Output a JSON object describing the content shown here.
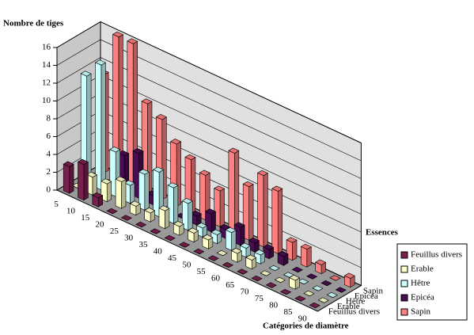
{
  "chart_data": {
    "type": "bar3d",
    "y_title": "Nombre de tiges",
    "x_title": "Catégories de diamètre",
    "z_title": "Essences",
    "categories": [
      "5",
      "10",
      "15",
      "20",
      "25",
      "30",
      "35",
      "40",
      "45",
      "50",
      "55",
      "60",
      "65",
      "70",
      "75",
      "80",
      "85",
      "90"
    ],
    "ylim": [
      0,
      16
    ],
    "yticks": [
      0,
      2,
      4,
      6,
      8,
      10,
      12,
      14,
      16
    ],
    "grid": true,
    "series": [
      {
        "name": "Feuillus divers",
        "color": "#7b1f4f",
        "values": [
          3,
          4,
          1,
          0,
          0,
          0,
          0,
          0,
          0,
          0,
          0,
          0,
          0,
          0,
          0,
          0,
          0,
          0
        ]
      },
      {
        "name": "Erable",
        "color": "#ffffcc",
        "values": [
          0,
          2,
          2,
          3,
          1,
          1,
          2,
          1,
          1,
          1,
          0,
          1,
          1,
          0,
          0,
          1,
          0,
          0
        ]
      },
      {
        "name": "Hêtre",
        "color": "#ccffff",
        "values": [
          12,
          14,
          5,
          2,
          4,
          5,
          4,
          3,
          1,
          1,
          2,
          1,
          1,
          0,
          0,
          0,
          0,
          0
        ]
      },
      {
        "name": "Epicéa",
        "color": "#4a0c52",
        "values": [
          0,
          0,
          4,
          5,
          1,
          0,
          0,
          1,
          2,
          1,
          2,
          1,
          1,
          1,
          0,
          0,
          0,
          0
        ]
      },
      {
        "name": "Sapin",
        "color": "#ff8080",
        "values": [
          11,
          16,
          16,
          10,
          9,
          7,
          6,
          5,
          4,
          9,
          6,
          8,
          7,
          2,
          2,
          1,
          0,
          1
        ]
      }
    ]
  }
}
